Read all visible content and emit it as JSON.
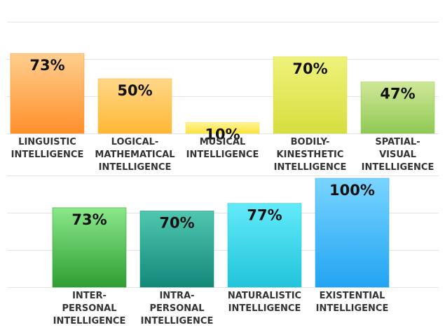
{
  "chart_data": [
    {
      "type": "bar",
      "categories": [
        [
          "LINGUISTIC",
          "INTELLIGENCE"
        ],
        [
          "LOGICAL-",
          "MATHEMATICAL",
          "INTELLIGENCE"
        ],
        [
          "MUSICAL",
          "INTELLIGENCE"
        ],
        [
          "BODILY-",
          "KINESTHETIC",
          "INTELLIGENCE"
        ],
        [
          "SPATIAL-",
          "VISUAL",
          "INTELLIGENCE"
        ]
      ],
      "values": [
        73,
        50,
        10,
        70,
        47
      ],
      "data_labels": [
        "73%",
        "50%",
        "10%",
        "70%",
        "47%"
      ],
      "colors": [
        [
          "#ffcf8f",
          "#ff8f2a"
        ],
        [
          "#ffd88a",
          "#ffb833"
        ],
        [
          "#fff59a",
          "#ffe23a"
        ],
        [
          "#eff27a",
          "#d6de3f"
        ],
        [
          "#cfe797",
          "#8fca55"
        ]
      ],
      "ylim": [
        0,
        100
      ],
      "grid": true
    },
    {
      "type": "bar",
      "categories": [
        [
          "INTER-",
          "PERSONAL",
          "INTELLIGENCE"
        ],
        [
          "INTRA-",
          "PERSONAL",
          "INTELLIGENCE"
        ],
        [
          "NATURALISTIC",
          "INTELLIGENCE"
        ],
        [
          "EXISTENTIAL",
          "INTELLIGENCE"
        ]
      ],
      "values": [
        73,
        70,
        77,
        100
      ],
      "data_labels": [
        "73%",
        "70%",
        "77%",
        "100%"
      ],
      "colors": [
        [
          "#8ae889",
          "#2f9e32"
        ],
        [
          "#4fc7b0",
          "#12887a"
        ],
        [
          "#63eafa",
          "#22c4da"
        ],
        [
          "#79d5ff",
          "#22a4f2"
        ]
      ],
      "ylim": [
        0,
        100
      ],
      "grid": true
    }
  ]
}
